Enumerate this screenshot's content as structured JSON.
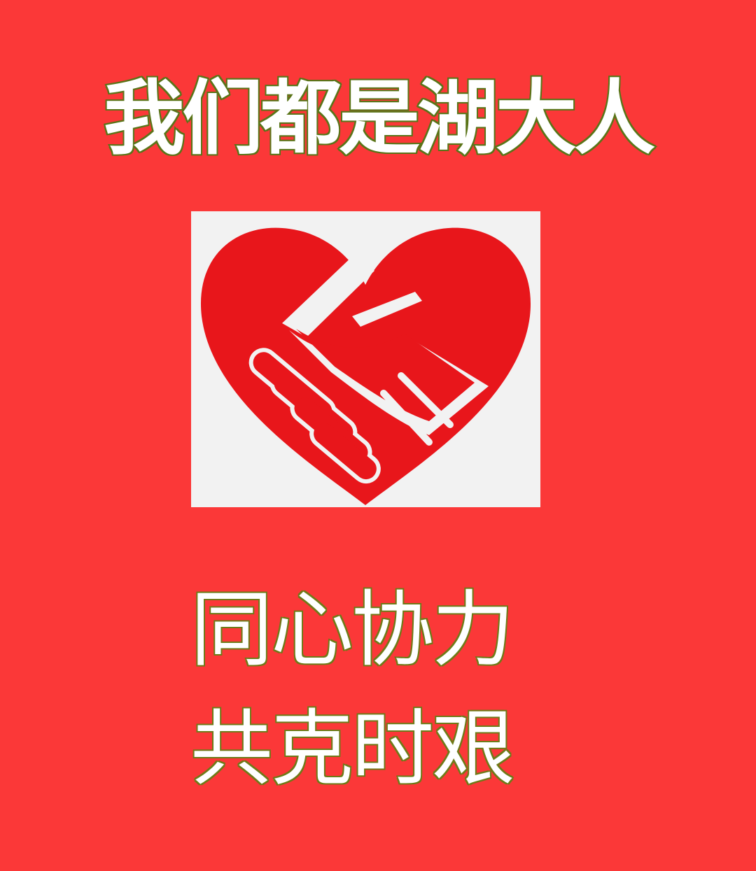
{
  "headline": "我们都是湖大人",
  "emblem": {
    "icon": "heart-handshake-icon",
    "heart_color": "#e8161b",
    "background_color": "#f2f2f2"
  },
  "slogan": {
    "line1": "同心协力",
    "line2": "共克时艰"
  },
  "colors": {
    "background": "#fb3838",
    "text": "#ffffff",
    "text_outline": "#5a7418"
  }
}
